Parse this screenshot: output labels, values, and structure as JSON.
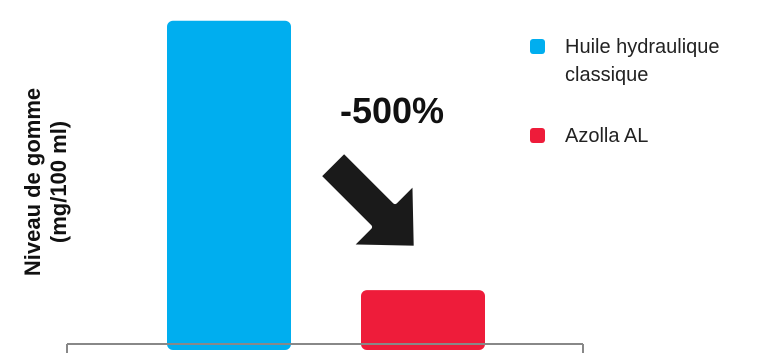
{
  "chart_data": {
    "type": "bar",
    "title": "",
    "xlabel": "",
    "ylabel_line1": "Niveau de gomme",
    "ylabel_line2": "(mg/100 ml)",
    "categories": [
      "Huile hydraulique classique",
      "Azolla AL"
    ],
    "values": [
      6,
      1
    ],
    "ylim": [
      0,
      6.2
    ],
    "colors": [
      "#00AEEF",
      "#EE1C3A"
    ],
    "annotation": {
      "text": "-500%",
      "icon": "arrow-down-right-icon"
    },
    "legend": {
      "placement": "top-right",
      "entries": [
        {
          "lines": [
            "Huile hydraulique",
            "classique"
          ],
          "color": "#00AEEF"
        },
        {
          "lines": [
            "Azolla AL"
          ],
          "color": "#EE1C3A"
        }
      ]
    },
    "grid": false
  }
}
